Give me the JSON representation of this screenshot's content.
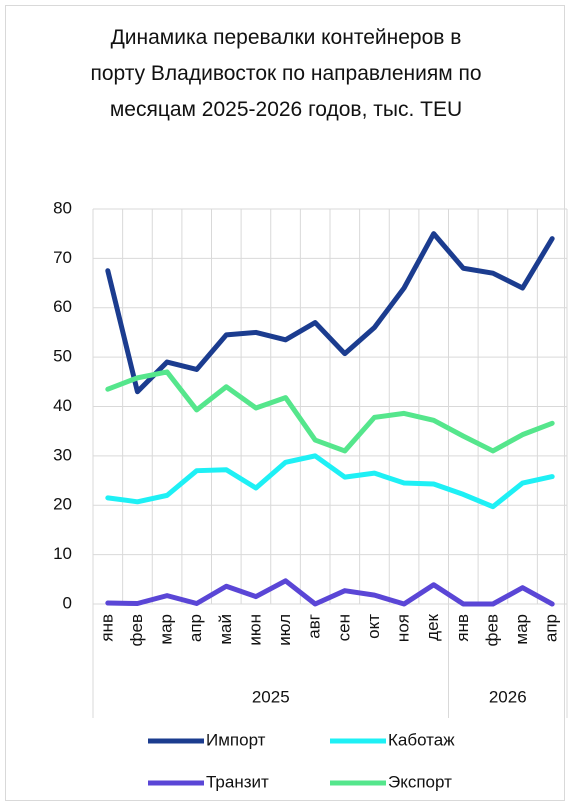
{
  "chart_data": {
    "type": "line",
    "title": "Динамика перевалки контейнеров в порту Владивосток по направлениям по месяцам 2025-2026 годов, тыс. TEU",
    "categories": [
      "янв",
      "фев",
      "мар",
      "апр",
      "май",
      "июн",
      "июл",
      "авг",
      "сен",
      "окт",
      "ноя",
      "дек",
      "янв",
      "фев",
      "мар",
      "апр"
    ],
    "category_groups": [
      {
        "label": "2025",
        "span": 12
      },
      {
        "label": "2026",
        "span": 4
      }
    ],
    "series": [
      {
        "name": "Импорт",
        "color": "#1b3c8f",
        "values": [
          67.5,
          43,
          49,
          47.5,
          54.5,
          55,
          53.5,
          57,
          50.7,
          56,
          64,
          75,
          68,
          67,
          64,
          74
        ]
      },
      {
        "name": "Каботаж",
        "color": "#1ef0f5",
        "values": [
          21.5,
          20.7,
          22,
          27,
          27.2,
          23.5,
          28.7,
          30,
          25.7,
          26.5,
          24.5,
          24.3,
          22.2,
          19.7,
          24.5,
          25.8
        ]
      },
      {
        "name": "Транзит",
        "color": "#5a46d6",
        "values": [
          0.2,
          0.1,
          1.7,
          0.1,
          3.6,
          1.5,
          4.7,
          0,
          2.7,
          1.8,
          0,
          3.9,
          0,
          0,
          3.3,
          0
        ]
      },
      {
        "name": "Экспорт",
        "color": "#55e68c",
        "values": [
          43.5,
          45.8,
          47,
          39.3,
          44,
          39.7,
          41.8,
          33.2,
          31,
          37.8,
          38.6,
          37.2,
          34,
          31,
          34.3,
          36.6
        ]
      }
    ],
    "ylim": [
      0,
      80
    ],
    "yticks": [
      0,
      10,
      20,
      30,
      40,
      50,
      60,
      70,
      80
    ],
    "grid": true,
    "legend": "bottom"
  }
}
